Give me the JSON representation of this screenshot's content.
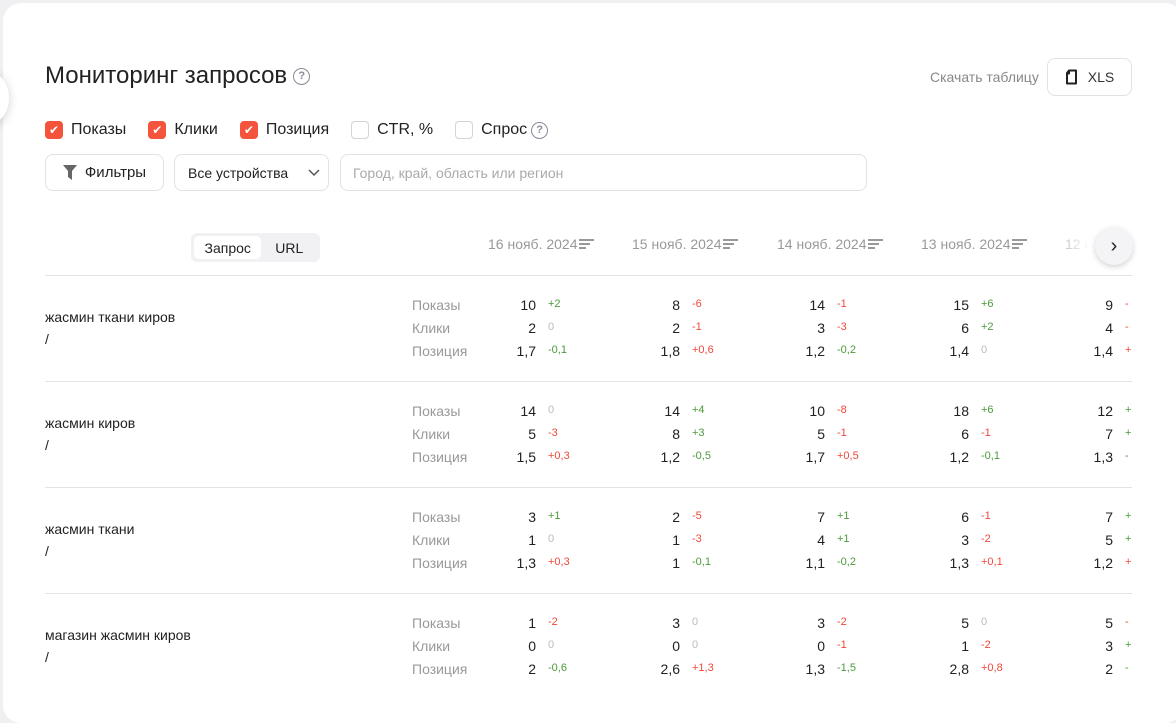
{
  "header": {
    "title": "Мониторинг запросов",
    "download_label": "Скачать таблицу",
    "xls_label": "XLS"
  },
  "metrics": [
    {
      "label": "Показы",
      "checked": true
    },
    {
      "label": "Клики",
      "checked": true
    },
    {
      "label": "Позиция",
      "checked": true
    },
    {
      "label": "CTR, %",
      "checked": false
    },
    {
      "label": "Спрос",
      "checked": false,
      "help": true
    }
  ],
  "toolbar": {
    "filters_label": "Фильтры",
    "device_select": "Все устройства",
    "region_placeholder": "Город, край, область или регион"
  },
  "segment": {
    "options": [
      "Запрос",
      "URL"
    ],
    "active": "Запрос"
  },
  "dates": [
    "16 нояб. 2024",
    "15 нояб. 2024",
    "14 нояб. 2024",
    "13 нояб. 2024",
    "12 н"
  ],
  "metric_labels": [
    "Показы",
    "Клики",
    "Позиция"
  ],
  "colors": {
    "accent": "#f4533c",
    "positive": "#4a9a3a",
    "negative": "#f0483a"
  },
  "rows": [
    {
      "query": "жасмин ткани киров",
      "url": "/",
      "cells": [
        [
          [
            "10",
            "+2",
            "pos"
          ],
          [
            "2",
            "0",
            "zero"
          ],
          [
            "1,7",
            "-0,1",
            "pos"
          ]
        ],
        [
          [
            "8",
            "-6",
            "neg"
          ],
          [
            "2",
            "-1",
            "neg"
          ],
          [
            "1,8",
            "+0,6",
            "neg"
          ]
        ],
        [
          [
            "14",
            "-1",
            "neg"
          ],
          [
            "3",
            "-3",
            "neg"
          ],
          [
            "1,2",
            "-0,2",
            "pos"
          ]
        ],
        [
          [
            "15",
            "+6",
            "pos"
          ],
          [
            "6",
            "+2",
            "pos"
          ],
          [
            "1,4",
            "0",
            "zero"
          ]
        ],
        [
          [
            "9",
            "-",
            "neg"
          ],
          [
            "4",
            "-",
            "neg"
          ],
          [
            "1,4",
            "+",
            "neg"
          ]
        ]
      ]
    },
    {
      "query": "жасмин киров",
      "url": "/",
      "cells": [
        [
          [
            "14",
            "0",
            "zero"
          ],
          [
            "5",
            "-3",
            "neg"
          ],
          [
            "1,5",
            "+0,3",
            "neg"
          ]
        ],
        [
          [
            "14",
            "+4",
            "pos"
          ],
          [
            "8",
            "+3",
            "pos"
          ],
          [
            "1,2",
            "-0,5",
            "pos"
          ]
        ],
        [
          [
            "10",
            "-8",
            "neg"
          ],
          [
            "5",
            "-1",
            "neg"
          ],
          [
            "1,7",
            "+0,5",
            "neg"
          ]
        ],
        [
          [
            "18",
            "+6",
            "pos"
          ],
          [
            "6",
            "-1",
            "neg"
          ],
          [
            "1,2",
            "-0,1",
            "pos"
          ]
        ],
        [
          [
            "12",
            "+",
            "pos"
          ],
          [
            "7",
            "+",
            "pos"
          ],
          [
            "1,3",
            "-",
            "pos"
          ]
        ]
      ]
    },
    {
      "query": "жасмин ткани",
      "url": "/",
      "cells": [
        [
          [
            "3",
            "+1",
            "pos"
          ],
          [
            "1",
            "0",
            "zero"
          ],
          [
            "1,3",
            "+0,3",
            "neg"
          ]
        ],
        [
          [
            "2",
            "-5",
            "neg"
          ],
          [
            "1",
            "-3",
            "neg"
          ],
          [
            "1",
            "-0,1",
            "pos"
          ]
        ],
        [
          [
            "7",
            "+1",
            "pos"
          ],
          [
            "4",
            "+1",
            "pos"
          ],
          [
            "1,1",
            "-0,2",
            "pos"
          ]
        ],
        [
          [
            "6",
            "-1",
            "neg"
          ],
          [
            "3",
            "-2",
            "neg"
          ],
          [
            "1,3",
            "+0,1",
            "neg"
          ]
        ],
        [
          [
            "7",
            "+",
            "pos"
          ],
          [
            "5",
            "+",
            "pos"
          ],
          [
            "1,2",
            "+",
            "neg"
          ]
        ]
      ]
    },
    {
      "query": "магазин жасмин киров",
      "url": "/",
      "cells": [
        [
          [
            "1",
            "-2",
            "neg"
          ],
          [
            "0",
            "0",
            "zero"
          ],
          [
            "2",
            "-0,6",
            "pos"
          ]
        ],
        [
          [
            "3",
            "0",
            "zero"
          ],
          [
            "0",
            "0",
            "zero"
          ],
          [
            "2,6",
            "+1,3",
            "neg"
          ]
        ],
        [
          [
            "3",
            "-2",
            "neg"
          ],
          [
            "0",
            "-1",
            "neg"
          ],
          [
            "1,3",
            "-1,5",
            "pos"
          ]
        ],
        [
          [
            "5",
            "0",
            "zero"
          ],
          [
            "1",
            "-2",
            "neg"
          ],
          [
            "2,8",
            "+0,8",
            "neg"
          ]
        ],
        [
          [
            "5",
            "-",
            "neg"
          ],
          [
            "3",
            "+",
            "pos"
          ],
          [
            "2",
            "-",
            "pos"
          ]
        ]
      ]
    }
  ]
}
